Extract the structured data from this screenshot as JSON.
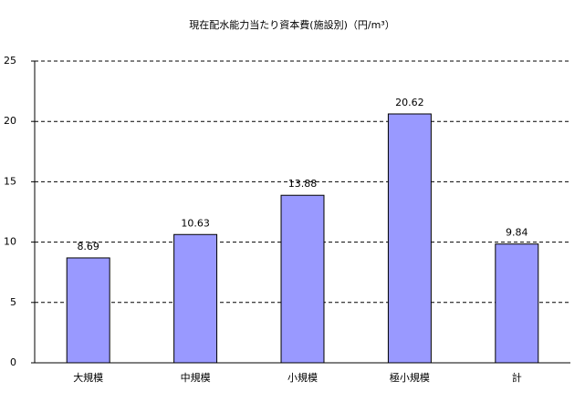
{
  "chart_data": {
    "type": "bar",
    "title": "現在配水能力当たり資本費(施設別)（円/m³）",
    "categories": [
      "大規模",
      "中規模",
      "小規模",
      "極小規模",
      "計"
    ],
    "values": [
      8.69,
      10.63,
      13.88,
      20.62,
      9.84
    ],
    "color": "#9999ff",
    "ylim": [
      0,
      25
    ],
    "yticks": [
      0,
      5,
      10,
      15,
      20,
      25
    ],
    "grid": true
  }
}
